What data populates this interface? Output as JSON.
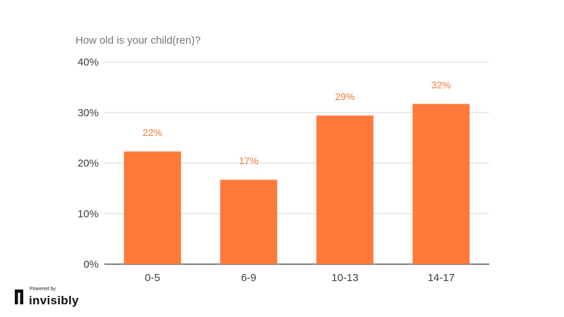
{
  "colors": {
    "bar": "#ff7a3a",
    "data_label": "#f47a3c",
    "grid": "#d9d9d9",
    "axis": "#333333",
    "title": "#757575",
    "logo": "#111111"
  },
  "branding": {
    "powered_by": "Powered by",
    "name": "invisibly"
  },
  "chart_data": {
    "type": "bar",
    "title": "How old is your child(ren)?",
    "xlabel": "",
    "ylabel": "",
    "categories": [
      "0-5",
      "6-9",
      "10-13",
      "14-17"
    ],
    "values": [
      22.3,
      16.7,
      29.4,
      31.7
    ],
    "value_labels": [
      "22%",
      "17%",
      "29%",
      "32%"
    ],
    "ylim": [
      0,
      40
    ],
    "yticks": [
      0,
      10,
      20,
      30,
      40
    ],
    "ytick_labels": [
      "0%",
      "10%",
      "20%",
      "30%",
      "40%"
    ],
    "grid": true,
    "legend": "none"
  }
}
